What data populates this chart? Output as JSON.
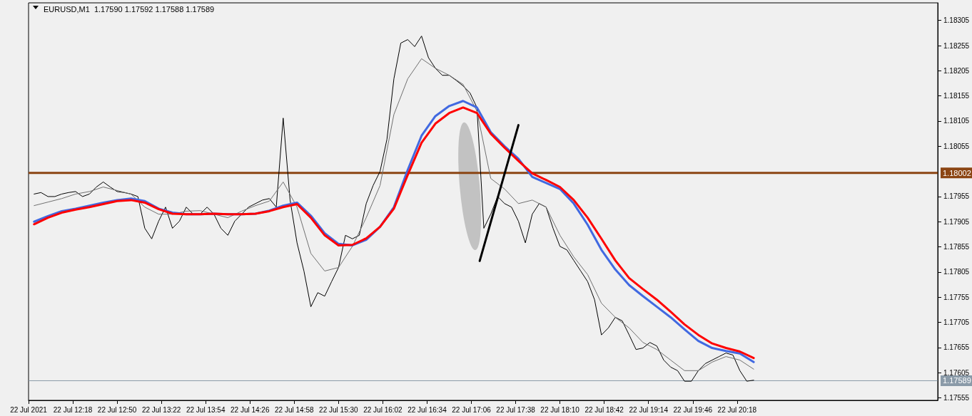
{
  "chart_data": {
    "type": "line",
    "title": "EURUSD,M1  1.17590 1.17592 1.17588 1.17589",
    "marker": "none",
    "xlim": [
      "2021-07-22T11:46",
      "2021-07-22T22:43"
    ],
    "xticks": [
      {
        "value": "2021-07-22T11:46",
        "label": "22 Jul 2021"
      },
      {
        "value": "2021-07-22T12:18",
        "label": "22 Jul 12:18"
      },
      {
        "value": "2021-07-22T12:50",
        "label": "22 Jul 12:50"
      },
      {
        "value": "2021-07-22T13:22",
        "label": "22 Jul 13:22"
      },
      {
        "value": "2021-07-22T13:54",
        "label": "22 Jul 13:54"
      },
      {
        "value": "2021-07-22T14:26",
        "label": "22 Jul 14:26"
      },
      {
        "value": "2021-07-22T14:58",
        "label": "22 Jul 14:58"
      },
      {
        "value": "2021-07-22T15:30",
        "label": "22 Jul 15:30"
      },
      {
        "value": "2021-07-22T16:02",
        "label": "22 Jul 16:02"
      },
      {
        "value": "2021-07-22T16:34",
        "label": "22 Jul 16:34"
      },
      {
        "value": "2021-07-22T17:06",
        "label": "22 Jul 17:06"
      },
      {
        "value": "2021-07-22T17:38",
        "label": "22 Jul 17:38"
      },
      {
        "value": "2021-07-22T18:10",
        "label": "22 Jul 18:10"
      },
      {
        "value": "2021-07-22T18:42",
        "label": "22 Jul 18:42"
      },
      {
        "value": "2021-07-22T19:14",
        "label": "22 Jul 19:14"
      },
      {
        "value": "2021-07-22T19:46",
        "label": "22 Jul 19:46"
      },
      {
        "value": "2021-07-22T20:18",
        "label": "22 Jul 20:18"
      }
    ],
    "ylim": [
      1.1755,
      1.1834
    ],
    "yticks": [
      1.17555,
      1.17605,
      1.17655,
      1.17705,
      1.17755,
      1.17805,
      1.17855,
      1.17905,
      1.17955,
      1.18055,
      1.18105,
      1.18155,
      1.18205,
      1.18255,
      1.18305
    ],
    "x": [
      "2021-07-22T11:50",
      "2021-07-22T12:00",
      "2021-07-22T12:10",
      "2021-07-22T12:20",
      "2021-07-22T12:30",
      "2021-07-22T12:40",
      "2021-07-22T12:50",
      "2021-07-22T13:00",
      "2021-07-22T13:10",
      "2021-07-22T13:20",
      "2021-07-22T13:30",
      "2021-07-22T13:40",
      "2021-07-22T13:50",
      "2021-07-22T14:00",
      "2021-07-22T14:10",
      "2021-07-22T14:20",
      "2021-07-22T14:30",
      "2021-07-22T14:40",
      "2021-07-22T14:50",
      "2021-07-22T15:00",
      "2021-07-22T15:10",
      "2021-07-22T15:20",
      "2021-07-22T15:30",
      "2021-07-22T15:40",
      "2021-07-22T15:50",
      "2021-07-22T16:00",
      "2021-07-22T16:10",
      "2021-07-22T16:20",
      "2021-07-22T16:30",
      "2021-07-22T16:40",
      "2021-07-22T16:50",
      "2021-07-22T17:00",
      "2021-07-22T17:10",
      "2021-07-22T17:20",
      "2021-07-22T17:30",
      "2021-07-22T17:40",
      "2021-07-22T17:50",
      "2021-07-22T18:00",
      "2021-07-22T18:10",
      "2021-07-22T18:20",
      "2021-07-22T18:30",
      "2021-07-22T18:40",
      "2021-07-22T18:50",
      "2021-07-22T19:00",
      "2021-07-22T19:10",
      "2021-07-22T19:20",
      "2021-07-22T19:30",
      "2021-07-22T19:40",
      "2021-07-22T19:50",
      "2021-07-22T20:00",
      "2021-07-22T20:10",
      "2021-07-22T20:20",
      "2021-07-22T20:30"
    ],
    "series": [
      {
        "color": "#000000",
        "x": [
          "2021-07-22T11:50",
          "2021-07-22T11:55",
          "2021-07-22T12:00",
          "2021-07-22T12:05",
          "2021-07-22T12:10",
          "2021-07-22T12:15",
          "2021-07-22T12:20",
          "2021-07-22T12:25",
          "2021-07-22T12:30",
          "2021-07-22T12:35",
          "2021-07-22T12:40",
          "2021-07-22T12:45",
          "2021-07-22T12:50",
          "2021-07-22T12:55",
          "2021-07-22T13:00",
          "2021-07-22T13:05",
          "2021-07-22T13:10",
          "2021-07-22T13:15",
          "2021-07-22T13:20",
          "2021-07-22T13:25",
          "2021-07-22T13:30",
          "2021-07-22T13:35",
          "2021-07-22T13:40",
          "2021-07-22T13:45",
          "2021-07-22T13:50",
          "2021-07-22T13:55",
          "2021-07-22T14:00",
          "2021-07-22T14:05",
          "2021-07-22T14:10",
          "2021-07-22T14:15",
          "2021-07-22T14:20",
          "2021-07-22T14:25",
          "2021-07-22T14:30",
          "2021-07-22T14:35",
          "2021-07-22T14:40",
          "2021-07-22T14:45",
          "2021-07-22T14:50",
          "2021-07-22T14:55",
          "2021-07-22T15:00",
          "2021-07-22T15:05",
          "2021-07-22T15:10",
          "2021-07-22T15:15",
          "2021-07-22T15:20",
          "2021-07-22T15:25",
          "2021-07-22T15:30",
          "2021-07-22T15:35",
          "2021-07-22T15:40",
          "2021-07-22T15:45",
          "2021-07-22T15:50",
          "2021-07-22T15:55",
          "2021-07-22T16:00",
          "2021-07-22T16:05",
          "2021-07-22T16:10",
          "2021-07-22T16:15",
          "2021-07-22T16:20",
          "2021-07-22T16:25",
          "2021-07-22T16:30",
          "2021-07-22T16:35",
          "2021-07-22T16:40",
          "2021-07-22T16:45",
          "2021-07-22T16:50",
          "2021-07-22T16:55",
          "2021-07-22T17:00",
          "2021-07-22T17:05",
          "2021-07-22T17:10",
          "2021-07-22T17:15",
          "2021-07-22T17:20",
          "2021-07-22T17:25",
          "2021-07-22T17:30",
          "2021-07-22T17:35",
          "2021-07-22T17:40",
          "2021-07-22T17:45",
          "2021-07-22T17:50",
          "2021-07-22T17:55",
          "2021-07-22T18:00",
          "2021-07-22T18:05",
          "2021-07-22T18:10",
          "2021-07-22T18:15",
          "2021-07-22T18:20",
          "2021-07-22T18:25",
          "2021-07-22T18:30",
          "2021-07-22T18:35",
          "2021-07-22T18:40",
          "2021-07-22T18:45",
          "2021-07-22T18:50",
          "2021-07-22T18:55",
          "2021-07-22T19:00",
          "2021-07-22T19:05",
          "2021-07-22T19:10",
          "2021-07-22T19:15",
          "2021-07-22T19:20",
          "2021-07-22T19:25",
          "2021-07-22T19:30",
          "2021-07-22T19:35",
          "2021-07-22T19:40",
          "2021-07-22T19:45",
          "2021-07-22T19:50",
          "2021-07-22T19:55",
          "2021-07-22T20:00",
          "2021-07-22T20:05",
          "2021-07-22T20:10",
          "2021-07-22T20:15",
          "2021-07-22T20:20",
          "2021-07-22T20:25",
          "2021-07-22T20:30"
        ],
        "values": [
          1.1796,
          1.17963,
          1.17955,
          1.17955,
          1.1796,
          1.17963,
          1.17965,
          1.17955,
          1.1796,
          1.17974,
          1.17984,
          1.17974,
          1.17965,
          1.17963,
          1.1796,
          1.17955,
          1.17892,
          1.17871,
          1.17906,
          1.17934,
          1.17892,
          1.17906,
          1.17934,
          1.1792,
          1.1792,
          1.17934,
          1.1792,
          1.17892,
          1.17878,
          1.17906,
          1.1792,
          1.17934,
          1.17941,
          1.17948,
          1.17951,
          1.17934,
          1.18111,
          1.17948,
          1.17863,
          1.17807,
          1.17736,
          1.17764,
          1.17757,
          1.17786,
          1.17814,
          1.17878,
          1.17871,
          1.17878,
          1.17941,
          1.17977,
          1.18005,
          1.18069,
          1.18189,
          1.1826,
          1.18267,
          1.18253,
          1.18274,
          1.18231,
          1.1821,
          1.18196,
          1.18196,
          1.18186,
          1.18175,
          1.18161,
          1.18132,
          1.17892,
          1.1792,
          1.17955,
          1.17941,
          1.17934,
          1.17906,
          1.17863,
          1.1792,
          1.17941,
          1.17934,
          1.17892,
          1.17856,
          1.17849,
          1.17828,
          1.17807,
          1.17786,
          1.1775,
          1.1768,
          1.17694,
          1.17715,
          1.17708,
          1.1768,
          1.17651,
          1.17654,
          1.17665,
          1.17658,
          1.1763,
          1.17616,
          1.17609,
          1.17588,
          1.17588,
          1.17609,
          1.17623,
          1.1763,
          1.17637,
          1.17644,
          1.1764,
          1.17609,
          1.17588,
          1.1759
        ]
      },
      {
        "color": "#707070",
        "values": [
          1.17937,
          1.17944,
          1.17951,
          1.1796,
          1.17965,
          1.17974,
          1.17967,
          1.1796,
          1.17934,
          1.1792,
          1.1792,
          1.17926,
          1.17927,
          1.1792,
          1.17913,
          1.17926,
          1.17937,
          1.17946,
          1.17984,
          1.17934,
          1.17842,
          1.17807,
          1.17814,
          1.17856,
          1.17913,
          1.17977,
          1.18118,
          1.18189,
          1.18229,
          1.1821,
          1.18196,
          1.18178,
          1.18125,
          1.17991,
          1.1797,
          1.17941,
          1.17948,
          1.17934,
          1.17878,
          1.17835,
          1.178,
          1.17743,
          1.17715,
          1.17694,
          1.17665,
          1.17651,
          1.1763,
          1.17609,
          1.17609,
          1.17626,
          1.17637,
          1.1763,
          1.17612
        ]
      },
      {
        "color": "#4169e1",
        "values": [
          1.17905,
          1.17916,
          1.17926,
          1.17931,
          1.17937,
          1.17943,
          1.17948,
          1.17951,
          1.17946,
          1.17931,
          1.17923,
          1.1792,
          1.1792,
          1.17921,
          1.1792,
          1.1792,
          1.17921,
          1.17927,
          1.17937,
          1.17943,
          1.17917,
          1.17882,
          1.17861,
          1.17858,
          1.17869,
          1.17895,
          1.17934,
          1.18008,
          1.18076,
          1.18115,
          1.18135,
          1.18145,
          1.18132,
          1.18083,
          1.18055,
          1.1803,
          1.17994,
          1.17982,
          1.1797,
          1.17941,
          1.17899,
          1.17849,
          1.1781,
          1.17779,
          1.17757,
          1.17736,
          1.17715,
          1.17691,
          1.17668,
          1.17654,
          1.17648,
          1.17643,
          1.17626
        ]
      },
      {
        "color": "#ff0000",
        "values": [
          1.179,
          1.17913,
          1.17923,
          1.17929,
          1.17934,
          1.1794,
          1.17946,
          1.17948,
          1.17943,
          1.1793,
          1.17921,
          1.1792,
          1.1792,
          1.17921,
          1.1792,
          1.1792,
          1.17921,
          1.17926,
          1.17934,
          1.1794,
          1.17913,
          1.17878,
          1.17858,
          1.17859,
          1.17872,
          1.17895,
          1.17931,
          1.17998,
          1.18062,
          1.181,
          1.18121,
          1.18132,
          1.18121,
          1.1808,
          1.18052,
          1.18026,
          1.18001,
          1.17988,
          1.17974,
          1.17948,
          1.17913,
          1.17871,
          1.17828,
          1.17793,
          1.17771,
          1.1775,
          1.17726,
          1.17701,
          1.1768,
          1.17663,
          1.17654,
          1.17647,
          1.17634
        ]
      },
      {
        "color": "#000000",
        "x": [
          "2021-07-22T17:12",
          "2021-07-22T17:40"
        ],
        "values": [
          1.17827,
          1.18097
        ]
      }
    ],
    "ref_lines": [
      {
        "axis": "y",
        "value": 1.18002,
        "label": "1.18002",
        "color": "#8b4513"
      },
      {
        "axis": "y",
        "value": 1.17589,
        "label": "1.17589",
        "color": "#8a9aa8"
      }
    ]
  }
}
